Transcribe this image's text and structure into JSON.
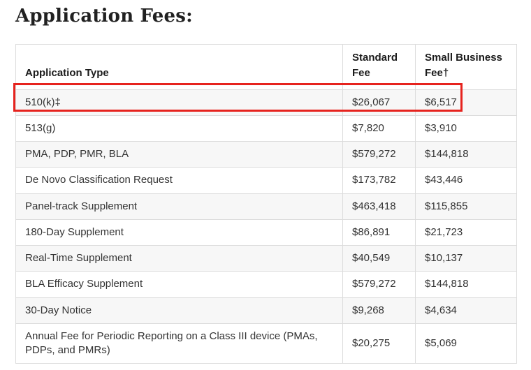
{
  "page": {
    "title": "Application Fees:"
  },
  "table": {
    "headers": [
      "Application Type",
      "Standard Fee",
      "Small Business Fee†"
    ],
    "rows": [
      {
        "type": "510(k)‡",
        "standard": "$26,067",
        "small_business": "$6,517",
        "highlighted": true
      },
      {
        "type": "513(g)",
        "standard": "$7,820",
        "small_business": "$3,910",
        "highlighted": false
      },
      {
        "type": "PMA, PDP, PMR, BLA",
        "standard": "$579,272",
        "small_business": "$144,818",
        "highlighted": false
      },
      {
        "type": "De Novo Classification Request",
        "standard": "$173,782",
        "small_business": "$43,446",
        "highlighted": false
      },
      {
        "type": "Panel-track Supplement",
        "standard": "$463,418",
        "small_business": "$115,855",
        "highlighted": false
      },
      {
        "type": "180-Day Supplement",
        "standard": "$86,891",
        "small_business": "$21,723",
        "highlighted": false
      },
      {
        "type": "Real-Time Supplement",
        "standard": "$40,549",
        "small_business": "$10,137",
        "highlighted": false
      },
      {
        "type": "BLA Efficacy Supplement",
        "standard": "$579,272",
        "small_business": "$144,818",
        "highlighted": false
      },
      {
        "type": "30-Day Notice",
        "standard": "$9,268",
        "small_business": "$4,634",
        "highlighted": false
      },
      {
        "type": "Annual Fee for Periodic Reporting on a Class III device (PMAs, PDPs, and PMRs)",
        "standard": "$20,275",
        "small_business": "$5,069",
        "highlighted": false
      }
    ]
  },
  "annotation": {
    "description": "red rectangle highlighting the 510(k) row"
  },
  "colors": {
    "highlight_red": "#e6231e",
    "row_stripe": "#f7f7f7",
    "table_border": "#dcdcdc",
    "title_text": "#212121",
    "body_text": "#333333"
  }
}
